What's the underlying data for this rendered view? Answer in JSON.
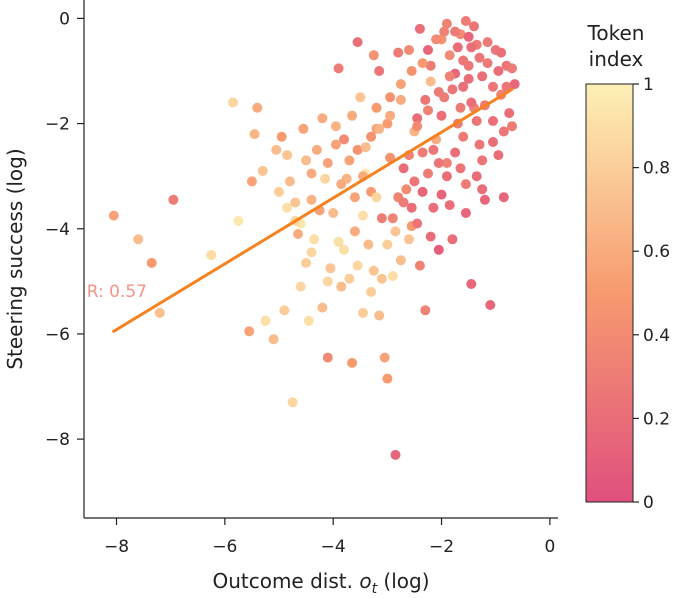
{
  "chart_data": {
    "type": "scatter",
    "xlabel": "Outcome dist. ",
    "xlabel_math": "o",
    "xlabel_sub": "t",
    "xlabel_suffix": " (log)",
    "ylabel": "Steering success (log)",
    "xlim": [
      -8.6,
      0.15
    ],
    "ylim": [
      -9.5,
      0.35
    ],
    "xticks": [
      -8,
      -6,
      -4,
      -2,
      0
    ],
    "xtick_labels": [
      "−8",
      "−6",
      "−4",
      "−2",
      "0"
    ],
    "yticks": [
      0,
      -2,
      -4,
      -6,
      -8
    ],
    "ytick_labels": [
      "0",
      "−2",
      "−4",
      "−6",
      "−8"
    ],
    "colorbar": {
      "title_line1": "Token",
      "title_line2": "index",
      "range": [
        0,
        1
      ],
      "ticks": [
        1,
        0.8,
        0.6,
        0.4,
        0.2,
        0
      ],
      "tick_labels": [
        "1",
        "0.8",
        "0.6",
        "0.4",
        "0.2",
        "0"
      ],
      "color_low": "#e0507e",
      "color_mid": "#f79a70",
      "color_high": "#fdf0b5"
    },
    "fit_line": {
      "x": [
        -8.05,
        -0.7
      ],
      "y": [
        -5.95,
        -1.35
      ],
      "color": "#f5821f"
    },
    "annotation": {
      "text": "R: 0.57",
      "x": -8.55,
      "y": -5.3,
      "color": "#f4938a"
    },
    "points": [
      [
        -8.05,
        -3.75,
        0.55
      ],
      [
        -7.6,
        -4.2,
        0.7
      ],
      [
        -7.35,
        -4.65,
        0.5
      ],
      [
        -7.2,
        -5.6,
        0.72
      ],
      [
        -6.95,
        -3.45,
        0.3
      ],
      [
        -6.25,
        -4.5,
        0.88
      ],
      [
        -5.85,
        -1.6,
        0.85
      ],
      [
        -5.75,
        -3.85,
        0.95
      ],
      [
        -5.55,
        -5.95,
        0.55
      ],
      [
        -5.5,
        -3.1,
        0.55
      ],
      [
        -5.45,
        -2.2,
        0.65
      ],
      [
        -5.4,
        -1.7,
        0.6
      ],
      [
        -5.3,
        -2.9,
        0.75
      ],
      [
        -5.25,
        -5.75,
        0.9
      ],
      [
        -5.1,
        -6.1,
        0.7
      ],
      [
        -5.05,
        -2.5,
        0.7
      ],
      [
        -4.95,
        -2.25,
        0.5
      ],
      [
        -4.9,
        -5.55,
        0.8
      ],
      [
        -4.85,
        -3.6,
        0.9
      ],
      [
        -4.8,
        -3.1,
        0.7
      ],
      [
        -4.75,
        -7.3,
        0.85
      ],
      [
        -4.7,
        -3.5,
        0.75
      ],
      [
        -4.65,
        -4.1,
        0.6
      ],
      [
        -4.6,
        -3.9,
        0.95
      ],
      [
        -4.6,
        -5.1,
        0.85
      ],
      [
        -4.55,
        -2.1,
        0.55
      ],
      [
        -4.5,
        -4.65,
        0.8
      ],
      [
        -4.45,
        -5.75,
        0.9
      ],
      [
        -4.4,
        -3.45,
        0.65
      ],
      [
        -4.35,
        -4.2,
        0.9
      ],
      [
        -4.3,
        -2.5,
        0.6
      ],
      [
        -4.25,
        -3.65,
        0.55
      ],
      [
        -4.2,
        -5.5,
        0.7
      ],
      [
        -4.15,
        -3.05,
        0.85
      ],
      [
        -4.1,
        -6.45,
        0.4
      ],
      [
        -4.05,
        -4.75,
        0.75
      ],
      [
        -4.0,
        -3.7,
        0.7
      ],
      [
        -3.95,
        -2.4,
        0.55
      ],
      [
        -3.9,
        -4.25,
        0.9
      ],
      [
        -3.85,
        -5.1,
        0.7
      ],
      [
        -3.8,
        -2.3,
        0.4
      ],
      [
        -3.75,
        -3.05,
        0.65
      ],
      [
        -3.7,
        -4.95,
        0.8
      ],
      [
        -3.65,
        -6.55,
        0.5
      ],
      [
        -3.6,
        -4.05,
        0.6
      ],
      [
        -3.55,
        -2.5,
        0.45
      ],
      [
        -3.5,
        -1.5,
        0.75
      ],
      [
        -3.45,
        -5.6,
        0.8
      ],
      [
        -3.4,
        -2.95,
        0.95
      ],
      [
        -3.35,
        -4.3,
        0.7
      ],
      [
        -3.3,
        -3.3,
        0.5
      ],
      [
        -3.25,
        -4.8,
        0.75
      ],
      [
        -3.2,
        -2.1,
        0.55
      ],
      [
        -3.15,
        -5.65,
        0.7
      ],
      [
        -3.1,
        -3.8,
        0.3
      ],
      [
        -3.05,
        -6.45,
        0.55
      ],
      [
        -3.0,
        -6.85,
        0.5
      ],
      [
        -2.95,
        -2.65,
        0.45
      ],
      [
        -2.9,
        -4.9,
        0.9
      ],
      [
        -2.85,
        -8.3,
        0.15
      ],
      [
        -2.8,
        -3.4,
        0.35
      ],
      [
        -2.75,
        -1.25,
        0.55
      ],
      [
        -2.7,
        -2.85,
        0.2
      ],
      [
        -2.65,
        -3.25,
        0.4
      ],
      [
        -2.6,
        -4.2,
        0.75
      ],
      [
        -2.55,
        -3.95,
        0.5
      ],
      [
        -2.5,
        -2.15,
        0.65
      ],
      [
        -2.45,
        -1.9,
        0.2
      ],
      [
        -2.4,
        -4.7,
        0.35
      ],
      [
        -2.35,
        -2.55,
        0.3
      ],
      [
        -2.3,
        -5.55,
        0.35
      ],
      [
        -2.25,
        -0.6,
        0.15
      ],
      [
        -2.2,
        -1.2,
        0.7
      ],
      [
        -2.15,
        -3.6,
        0.2
      ],
      [
        -2.1,
        -2.3,
        0.6
      ],
      [
        -2.05,
        -4.4,
        0.1
      ],
      [
        -2.0,
        -0.4,
        0.45
      ],
      [
        -1.95,
        -1.5,
        0.3
      ],
      [
        -1.9,
        -2.75,
        0.35
      ],
      [
        -1.85,
        -0.7,
        0.4
      ],
      [
        -1.8,
        -4.2,
        0.2
      ],
      [
        -1.75,
        -1.05,
        0.15
      ],
      [
        -1.7,
        -2.0,
        0.3
      ],
      [
        -1.65,
        -0.3,
        0.4
      ],
      [
        -1.6,
        -1.3,
        0.2
      ],
      [
        -1.55,
        -3.15,
        0.3
      ],
      [
        -1.5,
        -0.9,
        0.25
      ],
      [
        -1.45,
        -5.05,
        0.15
      ],
      [
        -1.4,
        -1.7,
        0.35
      ],
      [
        -1.35,
        -0.5,
        0.3
      ],
      [
        -1.3,
        -2.4,
        0.25
      ],
      [
        -1.25,
        -1.1,
        0.2
      ],
      [
        -1.2,
        -3.45,
        0.15
      ],
      [
        -1.15,
        -0.85,
        0.3
      ],
      [
        -1.1,
        -5.45,
        0.15
      ],
      [
        -1.05,
        -1.95,
        0.2
      ],
      [
        -1.0,
        -0.6,
        0.25
      ],
      [
        -0.95,
        -2.6,
        0.2
      ],
      [
        -0.9,
        -1.45,
        0.35
      ],
      [
        -0.85,
        -3.4,
        0.15
      ],
      [
        -0.8,
        -0.9,
        0.25
      ],
      [
        -0.75,
        -1.8,
        0.2
      ],
      [
        -0.7,
        -2.05,
        0.3
      ],
      [
        -0.65,
        -1.25,
        0.15
      ],
      [
        -2.4,
        -0.2,
        0.2
      ],
      [
        -2.2,
        -0.9,
        0.3
      ],
      [
        -1.95,
        -0.25,
        0.35
      ],
      [
        -1.7,
        -0.55,
        0.2
      ],
      [
        -1.5,
        -0.35,
        0.15
      ],
      [
        -1.3,
        -0.75,
        0.25
      ],
      [
        -1.15,
        -0.45,
        0.3
      ],
      [
        -0.95,
        -1.0,
        0.2
      ],
      [
        -2.6,
        -0.6,
        0.4
      ],
      [
        -2.8,
        -0.65,
        0.3
      ],
      [
        -3.15,
        -1.0,
        0.25
      ],
      [
        -3.55,
        -0.45,
        0.2
      ],
      [
        -3.9,
        -0.95,
        0.3
      ],
      [
        -3.25,
        -0.7,
        0.45
      ],
      [
        -2.3,
        -1.55,
        0.25
      ],
      [
        -2.0,
        -1.85,
        0.2
      ],
      [
        -1.8,
        -1.35,
        0.25
      ],
      [
        -1.6,
        -2.25,
        0.3
      ],
      [
        -1.45,
        -1.6,
        0.2
      ],
      [
        -1.25,
        -2.7,
        0.25
      ],
      [
        -1.05,
        -2.35,
        0.2
      ],
      [
        -0.85,
        -2.15,
        0.25
      ],
      [
        -1.75,
        -2.55,
        0.2
      ],
      [
        -2.05,
        -2.75,
        0.25
      ],
      [
        -2.25,
        -2.95,
        0.3
      ],
      [
        -2.5,
        -3.1,
        0.25
      ],
      [
        -2.7,
        -3.5,
        0.3
      ],
      [
        -2.9,
        -3.8,
        0.35
      ],
      [
        -2.55,
        -3.6,
        0.2
      ],
      [
        -2.35,
        -3.3,
        0.15
      ],
      [
        -2.15,
        -2.5,
        0.25
      ],
      [
        -1.9,
        -3.0,
        0.2
      ],
      [
        -1.65,
        -2.85,
        0.25
      ],
      [
        -1.35,
        -3.0,
        0.2
      ],
      [
        -3.45,
        -3.0,
        0.6
      ],
      [
        -3.6,
        -3.4,
        0.55
      ],
      [
        -3.85,
        -3.15,
        0.6
      ],
      [
        -4.1,
        -2.75,
        0.55
      ],
      [
        -4.4,
        -2.95,
        0.6
      ],
      [
        -3.7,
        -2.7,
        0.55
      ],
      [
        -3.3,
        -2.25,
        0.45
      ],
      [
        -3.0,
        -2.0,
        0.5
      ],
      [
        -3.2,
        -1.7,
        0.5
      ],
      [
        -2.95,
        -1.5,
        0.45
      ],
      [
        -3.65,
        -1.85,
        0.6
      ],
      [
        -3.95,
        -2.05,
        0.65
      ],
      [
        -4.2,
        -1.9,
        0.6
      ],
      [
        -4.5,
        -2.7,
        0.7
      ],
      [
        -4.85,
        -2.6,
        0.75
      ],
      [
        -5.0,
        -3.3,
        0.8
      ],
      [
        -4.7,
        -3.85,
        0.85
      ],
      [
        -4.4,
        -4.45,
        0.85
      ],
      [
        -4.1,
        -5.0,
        0.85
      ],
      [
        -3.8,
        -4.4,
        0.9
      ],
      [
        -3.55,
        -4.7,
        0.85
      ],
      [
        -3.3,
        -5.2,
        0.8
      ],
      [
        -3.45,
        -3.75,
        0.9
      ],
      [
        -3.2,
        -3.4,
        0.85
      ],
      [
        -3.0,
        -4.3,
        0.8
      ],
      [
        -3.1,
        -4.95,
        0.75
      ],
      [
        -2.85,
        -4.05,
        0.75
      ],
      [
        -2.75,
        -4.6,
        0.7
      ],
      [
        -2.6,
        -2.6,
        0.35
      ],
      [
        -2.45,
        -3.9,
        0.25
      ],
      [
        -2.2,
        -4.15,
        0.2
      ],
      [
        -2.0,
        -3.35,
        0.15
      ],
      [
        -1.85,
        -3.55,
        0.2
      ],
      [
        -1.55,
        -3.7,
        0.15
      ],
      [
        -1.25,
        -3.25,
        0.2
      ],
      [
        -1.55,
        -0.05,
        0.3
      ],
      [
        -1.4,
        -0.15,
        0.25
      ],
      [
        -1.9,
        -0.1,
        0.35
      ],
      [
        -2.1,
        -0.4,
        0.4
      ],
      [
        -2.35,
        -0.85,
        0.5
      ],
      [
        -2.55,
        -1.0,
        0.45
      ],
      [
        -2.75,
        -1.55,
        0.6
      ],
      [
        -2.95,
        -1.85,
        0.6
      ],
      [
        -3.15,
        -2.1,
        0.65
      ],
      [
        -3.4,
        -2.45,
        0.7
      ],
      [
        -1.05,
        -1.3,
        0.25
      ],
      [
        -0.9,
        -0.65,
        0.2
      ],
      [
        -0.8,
        -1.3,
        0.25
      ],
      [
        -0.7,
        -0.95,
        0.3
      ],
      [
        -1.2,
        -1.65,
        0.3
      ],
      [
        -1.35,
        -1.95,
        0.25
      ],
      [
        -1.5,
        -1.15,
        0.2
      ],
      [
        -1.65,
        -1.7,
        0.3
      ],
      [
        -1.85,
        -1.1,
        0.35
      ],
      [
        -2.05,
        -1.4,
        0.3
      ],
      [
        -2.25,
        -1.75,
        0.35
      ],
      [
        -2.45,
        -2.05,
        0.4
      ],
      [
        -1.6,
        -0.8,
        0.25
      ],
      [
        -1.45,
        -0.55,
        0.2
      ],
      [
        -1.75,
        -0.25,
        0.3
      ]
    ]
  }
}
